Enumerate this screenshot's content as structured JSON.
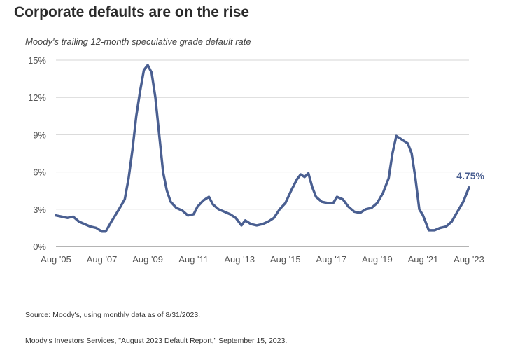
{
  "title": "Corporate defaults are on the rise",
  "subtitle": "Moody's trailing 12-month speculative grade default rate",
  "source_line1": "Source: Moody's, using monthly data as of 8/31/2023.",
  "source_line2": "Moody's Investors Services, \"August 2023 Default Report,\" September 15, 2023.",
  "chart_data": {
    "type": "line",
    "title": "Corporate defaults are on the rise",
    "subtitle": "Moody's trailing 12-month speculative grade default rate",
    "xlabel": "",
    "ylabel": "",
    "x_range": [
      "2005-08",
      "2023-08"
    ],
    "ylim": [
      0,
      15
    ],
    "y_ticks": [
      0,
      3,
      6,
      9,
      12,
      15
    ],
    "y_tick_labels": [
      "0%",
      "3%",
      "6%",
      "9%",
      "12%",
      "15%"
    ],
    "x_ticks": [
      "2005-08",
      "2007-08",
      "2009-08",
      "2011-08",
      "2013-08",
      "2015-08",
      "2017-08",
      "2019-08",
      "2021-08",
      "2023-08"
    ],
    "x_tick_labels": [
      "Aug '05",
      "Aug '07",
      "Aug '09",
      "Aug '11",
      "Aug '13",
      "Aug '15",
      "Aug '17",
      "Aug '19",
      "Aug '21",
      "Aug '23"
    ],
    "grid": true,
    "line_color": "#4a5f91",
    "end_label": "4.75%",
    "series": [
      {
        "points": [
          [
            "2005-08",
            2.5
          ],
          [
            "2005-11",
            2.4
          ],
          [
            "2006-02",
            2.3
          ],
          [
            "2006-05",
            2.4
          ],
          [
            "2006-08",
            2.0
          ],
          [
            "2006-11",
            1.8
          ],
          [
            "2007-02",
            1.6
          ],
          [
            "2007-05",
            1.5
          ],
          [
            "2007-08",
            1.2
          ],
          [
            "2007-10",
            1.2
          ],
          [
            "2008-01",
            2.0
          ],
          [
            "2008-05",
            3.0
          ],
          [
            "2008-08",
            3.8
          ],
          [
            "2008-10",
            5.5
          ],
          [
            "2008-12",
            7.8
          ],
          [
            "2009-02",
            10.5
          ],
          [
            "2009-04",
            12.5
          ],
          [
            "2009-06",
            14.2
          ],
          [
            "2009-08",
            14.6
          ],
          [
            "2009-10",
            14.0
          ],
          [
            "2009-12",
            12.0
          ],
          [
            "2010-02",
            9.0
          ],
          [
            "2010-04",
            6.0
          ],
          [
            "2010-06",
            4.5
          ],
          [
            "2010-08",
            3.6
          ],
          [
            "2010-11",
            3.1
          ],
          [
            "2011-02",
            2.9
          ],
          [
            "2011-05",
            2.5
          ],
          [
            "2011-08",
            2.6
          ],
          [
            "2011-10",
            3.2
          ],
          [
            "2012-01",
            3.7
          ],
          [
            "2012-04",
            4.0
          ],
          [
            "2012-06",
            3.4
          ],
          [
            "2012-09",
            3.0
          ],
          [
            "2012-12",
            2.8
          ],
          [
            "2013-03",
            2.6
          ],
          [
            "2013-06",
            2.3
          ],
          [
            "2013-09",
            1.7
          ],
          [
            "2013-11",
            2.1
          ],
          [
            "2014-02",
            1.8
          ],
          [
            "2014-05",
            1.7
          ],
          [
            "2014-08",
            1.8
          ],
          [
            "2014-11",
            2.0
          ],
          [
            "2015-02",
            2.3
          ],
          [
            "2015-05",
            3.0
          ],
          [
            "2015-08",
            3.5
          ],
          [
            "2015-11",
            4.5
          ],
          [
            "2016-02",
            5.4
          ],
          [
            "2016-04",
            5.8
          ],
          [
            "2016-06",
            5.6
          ],
          [
            "2016-08",
            5.9
          ],
          [
            "2016-10",
            4.8
          ],
          [
            "2016-12",
            4.0
          ],
          [
            "2017-03",
            3.6
          ],
          [
            "2017-06",
            3.5
          ],
          [
            "2017-09",
            3.5
          ],
          [
            "2017-11",
            4.0
          ],
          [
            "2018-02",
            3.8
          ],
          [
            "2018-05",
            3.2
          ],
          [
            "2018-08",
            2.8
          ],
          [
            "2018-11",
            2.7
          ],
          [
            "2019-02",
            3.0
          ],
          [
            "2019-05",
            3.1
          ],
          [
            "2019-08",
            3.5
          ],
          [
            "2019-11",
            4.3
          ],
          [
            "2020-02",
            5.5
          ],
          [
            "2020-04",
            7.5
          ],
          [
            "2020-06",
            8.9
          ],
          [
            "2020-08",
            8.7
          ],
          [
            "2020-10",
            8.5
          ],
          [
            "2020-12",
            8.3
          ],
          [
            "2021-02",
            7.5
          ],
          [
            "2021-04",
            5.5
          ],
          [
            "2021-06",
            3.0
          ],
          [
            "2021-08",
            2.5
          ],
          [
            "2021-11",
            1.3
          ],
          [
            "2022-02",
            1.3
          ],
          [
            "2022-05",
            1.5
          ],
          [
            "2022-08",
            1.6
          ],
          [
            "2022-11",
            2.0
          ],
          [
            "2023-02",
            2.8
          ],
          [
            "2023-05",
            3.6
          ],
          [
            "2023-08",
            4.75
          ]
        ]
      }
    ]
  }
}
